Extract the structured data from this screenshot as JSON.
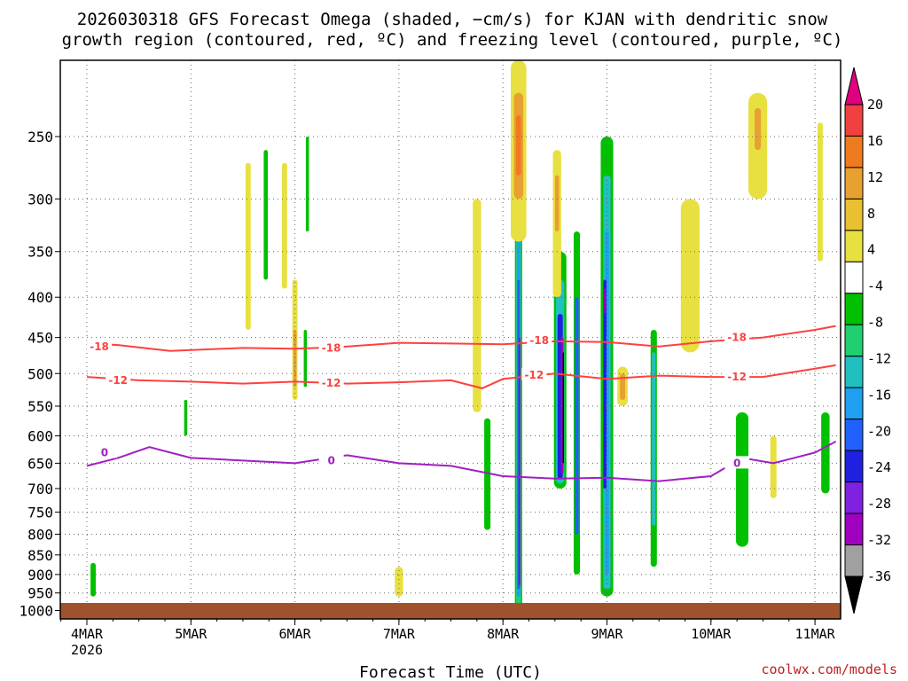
{
  "chart_data": {
    "type": "time-height contour",
    "title_line1": "2026030318 GFS Forecast Omega (shaded, −cm/s) for KJAN with dendritic snow",
    "title_line2": "growth region (contoured, red, ºC) and freezing level (contoured, purple, ºC)",
    "xlabel": "Forecast Time (UTC)",
    "credit": "coolwx.com/models",
    "x_ticks": [
      {
        "label": "4MAR",
        "sub": "2026",
        "day": 0
      },
      {
        "label": "5MAR",
        "sub": "",
        "day": 1
      },
      {
        "label": "6MAR",
        "sub": "",
        "day": 2
      },
      {
        "label": "7MAR",
        "sub": "",
        "day": 3
      },
      {
        "label": "8MAR",
        "sub": "",
        "day": 4
      },
      {
        "label": "9MAR",
        "sub": "",
        "day": 5
      },
      {
        "label": "10MAR",
        "sub": "",
        "day": 6
      },
      {
        "label": "11MAR",
        "sub": "",
        "day": 7
      }
    ],
    "y_axis": {
      "label_text": [
        "250",
        "300",
        "350",
        "400",
        "450",
        "500",
        "550",
        "600",
        "650",
        "700",
        "750",
        "800",
        "850",
        "900",
        "950",
        "1000"
      ],
      "range_hpa": [
        200,
        1025
      ],
      "scale": "log-pressure"
    },
    "colorbar": {
      "labels": [
        "20",
        "16",
        "12",
        "8",
        "4",
        "-4",
        "-8",
        "-12",
        "-16",
        "-20",
        "-24",
        "-28",
        "-32",
        "-36"
      ],
      "colors": [
        "#e0007f",
        "#f04040",
        "#f07a20",
        "#e8a030",
        "#e8c030",
        "#e8e040",
        "#ffffff",
        "#00c000",
        "#20d070",
        "#20c0c0",
        "#20a0f0",
        "#2060ff",
        "#2020e0",
        "#8020e0",
        "#a000c0",
        "#a0a0a0",
        "#000000"
      ]
    },
    "contours": [
      {
        "name": "-18C isotherm",
        "color": "#ff4040",
        "label": "-18",
        "points": [
          [
            0,
            458
          ],
          [
            0.3,
            460
          ],
          [
            0.8,
            468
          ],
          [
            1.5,
            464
          ],
          [
            2.0,
            465
          ],
          [
            2.4,
            463
          ],
          [
            3.0,
            457
          ],
          [
            3.5,
            458
          ],
          [
            4.0,
            459
          ],
          [
            4.5,
            455
          ],
          [
            5.0,
            456
          ],
          [
            5.5,
            462
          ],
          [
            6.0,
            455
          ],
          [
            6.5,
            450
          ],
          [
            7.0,
            440
          ],
          [
            7.2,
            435
          ]
        ]
      },
      {
        "name": "-12C isotherm",
        "color": "#ff4040",
        "label": "-12",
        "points": [
          [
            0,
            505
          ],
          [
            0.5,
            510
          ],
          [
            1.0,
            512
          ],
          [
            1.5,
            515
          ],
          [
            2.0,
            512
          ],
          [
            2.5,
            515
          ],
          [
            3.0,
            513
          ],
          [
            3.5,
            510
          ],
          [
            3.8,
            522
          ],
          [
            4.0,
            508
          ],
          [
            4.5,
            500
          ],
          [
            5.0,
            508
          ],
          [
            5.5,
            503
          ],
          [
            6.0,
            505
          ],
          [
            6.5,
            505
          ],
          [
            7.0,
            493
          ],
          [
            7.2,
            488
          ]
        ]
      },
      {
        "name": "0C freezing level",
        "color": "#a020c0",
        "label": "0",
        "points": [
          [
            0,
            655
          ],
          [
            0.3,
            640
          ],
          [
            0.6,
            620
          ],
          [
            1.0,
            640
          ],
          [
            1.5,
            645
          ],
          [
            2.0,
            650
          ],
          [
            2.5,
            635
          ],
          [
            3.0,
            650
          ],
          [
            3.5,
            655
          ],
          [
            4.0,
            675
          ],
          [
            4.5,
            680
          ],
          [
            5.0,
            678
          ],
          [
            5.5,
            685
          ],
          [
            6.0,
            675
          ],
          [
            6.3,
            640
          ],
          [
            6.6,
            650
          ],
          [
            7.0,
            630
          ],
          [
            7.2,
            610
          ]
        ]
      }
    ],
    "contour_labels": [
      {
        "text": "-18",
        "day": 0.12,
        "hpa": 462
      },
      {
        "text": "-18",
        "day": 2.35,
        "hpa": 464
      },
      {
        "text": "-18",
        "day": 4.35,
        "hpa": 454
      },
      {
        "text": "-18",
        "day": 6.25,
        "hpa": 450
      },
      {
        "text": "-12",
        "day": 0.3,
        "hpa": 510
      },
      {
        "text": "-12",
        "day": 2.35,
        "hpa": 514
      },
      {
        "text": "-12",
        "day": 4.3,
        "hpa": 502
      },
      {
        "text": "-12",
        "day": 6.25,
        "hpa": 505
      },
      {
        "text": "0",
        "day": 0.17,
        "hpa": 630
      },
      {
        "text": "0",
        "day": 2.35,
        "hpa": 645
      },
      {
        "text": "0",
        "day": 6.25,
        "hpa": 650
      }
    ],
    "shading": [
      {
        "day": 4.15,
        "w": 0.07,
        "top": 230,
        "bot": 990,
        "c": "#00c000"
      },
      {
        "day": 4.15,
        "w": 0.05,
        "top": 280,
        "bot": 980,
        "c": "#20d070"
      },
      {
        "day": 4.15,
        "w": 0.035,
        "top": 330,
        "bot": 960,
        "c": "#20a0f0"
      },
      {
        "day": 4.15,
        "w": 0.025,
        "top": 380,
        "bot": 940,
        "c": "#2060ff"
      },
      {
        "day": 4.16,
        "w": 0.015,
        "top": 450,
        "bot": 930,
        "c": "#a000c0"
      },
      {
        "day": 4.55,
        "w": 0.12,
        "top": 350,
        "bot": 700,
        "c": "#00c000"
      },
      {
        "day": 4.55,
        "w": 0.08,
        "top": 380,
        "bot": 690,
        "c": "#20c0c0"
      },
      {
        "day": 4.55,
        "w": 0.05,
        "top": 420,
        "bot": 680,
        "c": "#2020e0"
      },
      {
        "day": 4.57,
        "w": 0.025,
        "top": 450,
        "bot": 670,
        "c": "#a000c0"
      },
      {
        "day": 4.58,
        "w": 0.012,
        "top": 470,
        "bot": 650,
        "c": "#000000"
      },
      {
        "day": 4.71,
        "w": 0.06,
        "top": 330,
        "bot": 900,
        "c": "#00c000"
      },
      {
        "day": 4.71,
        "w": 0.035,
        "top": 400,
        "bot": 800,
        "c": "#2060ff"
      },
      {
        "day": 5.0,
        "w": 0.12,
        "top": 250,
        "bot": 960,
        "c": "#00c000"
      },
      {
        "day": 5.0,
        "w": 0.07,
        "top": 280,
        "bot": 940,
        "c": "#20c0c0"
      },
      {
        "day": 5.0,
        "w": 0.04,
        "top": 330,
        "bot": 900,
        "c": "#20a0f0"
      },
      {
        "day": 4.98,
        "w": 0.03,
        "top": 380,
        "bot": 700,
        "c": "#2020e0"
      },
      {
        "day": 4.98,
        "w": 0.018,
        "top": 390,
        "bot": 420,
        "c": "#a000c0"
      },
      {
        "day": 5.45,
        "w": 0.06,
        "top": 440,
        "bot": 880,
        "c": "#00c000"
      },
      {
        "day": 5.45,
        "w": 0.035,
        "top": 470,
        "bot": 780,
        "c": "#20c0c0"
      },
      {
        "day": 4.15,
        "w": 0.15,
        "top": 200,
        "bot": 340,
        "c": "#e8e040"
      },
      {
        "day": 4.15,
        "w": 0.09,
        "top": 220,
        "bot": 300,
        "c": "#e8a030"
      },
      {
        "day": 4.15,
        "w": 0.05,
        "top": 235,
        "bot": 280,
        "c": "#f07a20"
      },
      {
        "day": 4.52,
        "w": 0.08,
        "top": 260,
        "bot": 400,
        "c": "#e8e040"
      },
      {
        "day": 4.52,
        "w": 0.04,
        "top": 280,
        "bot": 330,
        "c": "#e8a030"
      },
      {
        "day": 3.75,
        "w": 0.08,
        "top": 300,
        "bot": 560,
        "c": "#e8e040"
      },
      {
        "day": 2.0,
        "w": 0.05,
        "top": 380,
        "bot": 540,
        "c": "#e8e040"
      },
      {
        "day": 2.0,
        "w": 0.03,
        "top": 440,
        "bot": 520,
        "c": "#e8a030"
      },
      {
        "day": 1.55,
        "w": 0.05,
        "top": 270,
        "bot": 440,
        "c": "#e8e040"
      },
      {
        "day": 1.9,
        "w": 0.05,
        "top": 270,
        "bot": 390,
        "c": "#e8e040"
      },
      {
        "day": 2.1,
        "w": 0.03,
        "top": 440,
        "bot": 520,
        "c": "#00c000"
      },
      {
        "day": 1.72,
        "w": 0.04,
        "top": 260,
        "bot": 380,
        "c": "#00c000"
      },
      {
        "day": 2.12,
        "w": 0.03,
        "top": 250,
        "bot": 330,
        "c": "#00c000"
      },
      {
        "day": 5.8,
        "w": 0.18,
        "top": 300,
        "bot": 470,
        "c": "#e8e040"
      },
      {
        "day": 6.45,
        "w": 0.18,
        "top": 220,
        "bot": 300,
        "c": "#e8e040"
      },
      {
        "day": 6.45,
        "w": 0.06,
        "top": 230,
        "bot": 260,
        "c": "#e8a030"
      },
      {
        "day": 6.3,
        "w": 0.12,
        "top": 560,
        "bot": 830,
        "c": "#00c000"
      },
      {
        "day": 6.6,
        "w": 0.06,
        "top": 600,
        "bot": 720,
        "c": "#e8e040"
      },
      {
        "day": 7.1,
        "w": 0.08,
        "top": 560,
        "bot": 710,
        "c": "#00c000"
      },
      {
        "day": 7.05,
        "w": 0.05,
        "top": 240,
        "bot": 360,
        "c": "#e8e040"
      },
      {
        "day": 5.15,
        "w": 0.1,
        "top": 490,
        "bot": 550,
        "c": "#e8e040"
      },
      {
        "day": 5.15,
        "w": 0.05,
        "top": 500,
        "bot": 540,
        "c": "#e8a030"
      },
      {
        "day": 0.06,
        "w": 0.05,
        "top": 870,
        "bot": 960,
        "c": "#00c000"
      },
      {
        "day": 3.0,
        "w": 0.08,
        "top": 880,
        "bot": 960,
        "c": "#e8e040"
      },
      {
        "day": 3.85,
        "w": 0.06,
        "top": 570,
        "bot": 790,
        "c": "#00c000"
      },
      {
        "day": 0.95,
        "w": 0.03,
        "top": 540,
        "bot": 600,
        "c": "#00c000"
      }
    ]
  }
}
